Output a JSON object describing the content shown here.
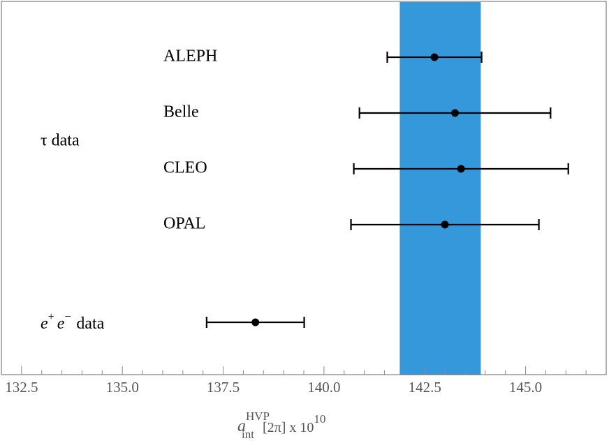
{
  "chart_data": {
    "type": "forest",
    "band": {
      "xmin": 141.88,
      "xmax": 143.89,
      "color": "#3598db"
    },
    "groups": [
      {
        "label": "τ data",
        "points": [
          {
            "name": "ALEPH",
            "value": 142.74,
            "error": 1.17
          },
          {
            "name": "Belle",
            "value": 143.25,
            "error": 2.37
          },
          {
            "name": "CLEO",
            "value": 143.4,
            "error": 2.66
          },
          {
            "name": "OPAL",
            "value": 143.0,
            "error": 2.33
          }
        ]
      },
      {
        "label": {
          "first": "e",
          "first_sup": "+",
          "second": "e",
          "second_sup": "−",
          "text": "data"
        },
        "points": [
          {
            "value": 138.3,
            "error": 1.21
          }
        ]
      }
    ],
    "color": "#000000",
    "x_label": {
      "symbol": "a",
      "subscript": "int",
      "superscript": "HVP",
      "text": "[2π] x 10",
      "exponent": "10"
    },
    "xlim": [
      132.0,
      147.0
    ],
    "xticks": [
      132.5,
      {
        "value": 135,
        "label": "135.0"
      },
      137.5,
      {
        "value": 140,
        "label": "140.0"
      },
      142.5,
      {
        "value": 145,
        "label": "145.0"
      }
    ],
    "xminorticks": [
      133,
      133.5,
      134,
      134.5,
      135.5,
      136,
      136.5,
      137,
      138,
      138.5,
      139,
      139.5,
      140.5,
      141,
      141.5,
      142,
      143,
      143.5,
      144,
      144.5,
      145.5,
      146,
      146.5
    ]
  }
}
